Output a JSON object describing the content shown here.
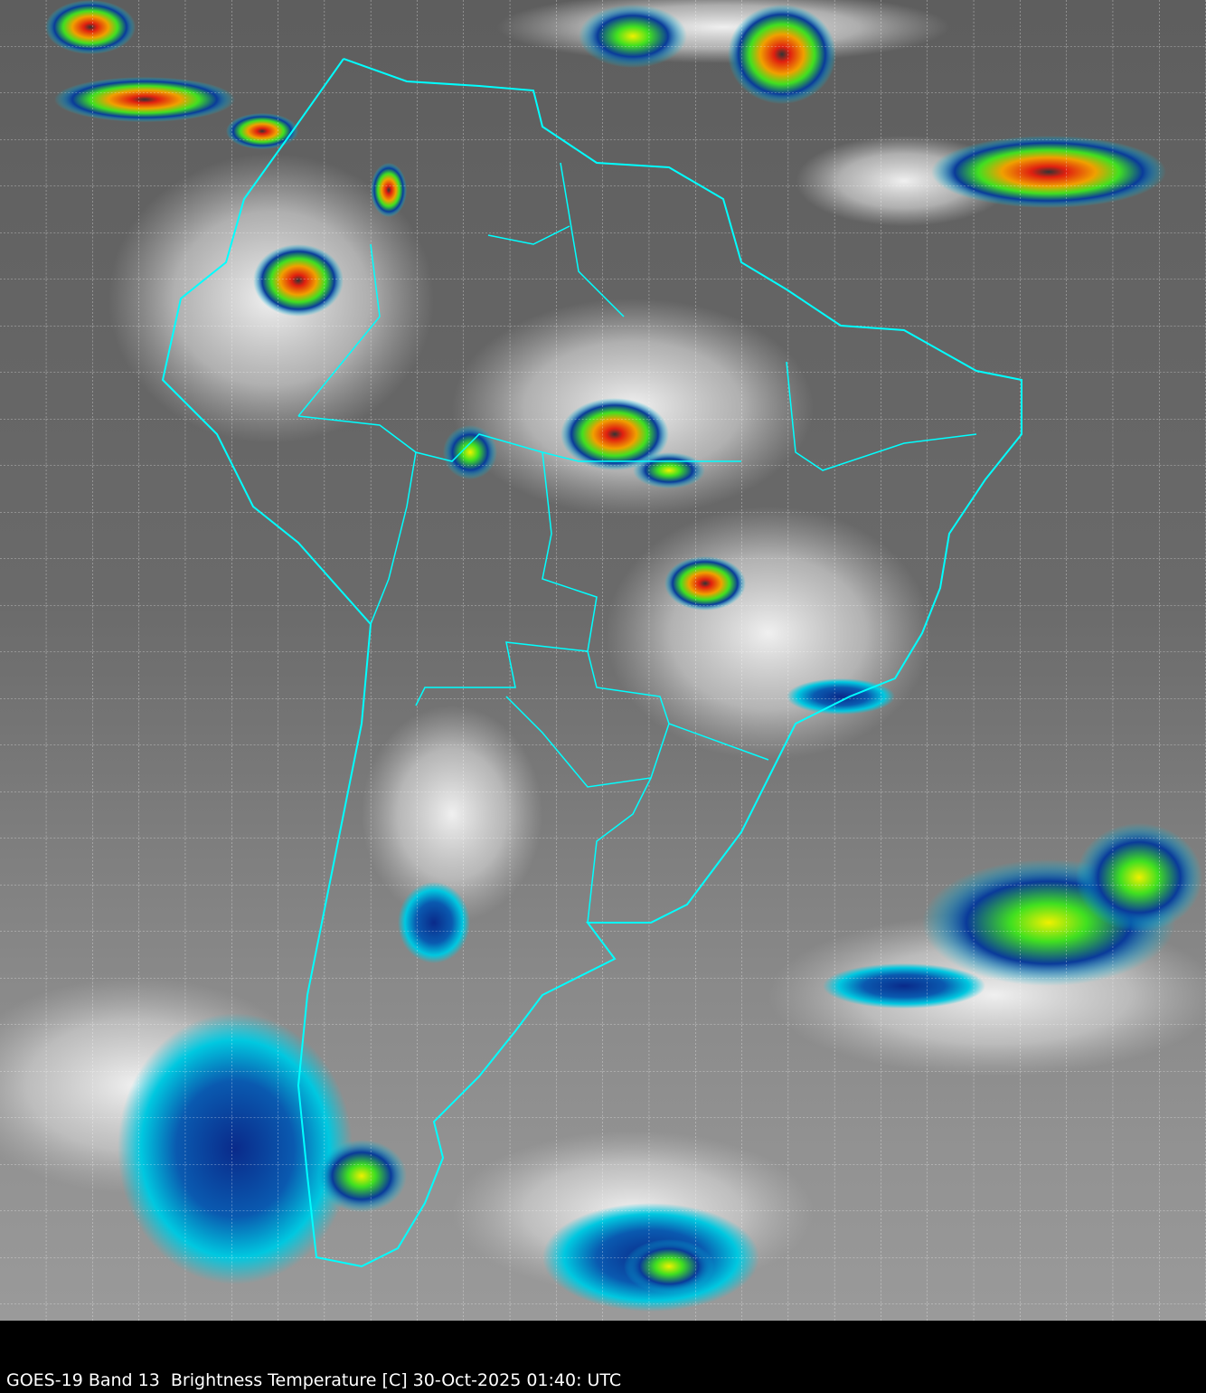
{
  "caption": "GOES-19 Band 13  Brightness Temperature [C] 30-Oct-2025 01:40: UTC",
  "colors": {
    "background": "#000000",
    "land_ocean_base": "#6e6e6e",
    "cloud_white": "#e8e8e8",
    "borders": "#00ffff",
    "grid": "#ffffff",
    "cold_blue": "#0a2a8a",
    "cold_cyan": "#00c8e0",
    "cold_green": "#40e020",
    "cold_yellow": "#f0f000",
    "cold_red": "#e02010"
  }
}
